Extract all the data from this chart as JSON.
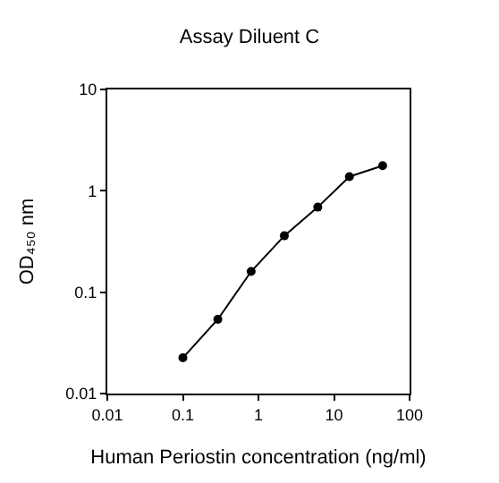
{
  "chart_data": {
    "type": "line",
    "title": "Assay Diluent C",
    "xlabel": "Human Periostin concentration (ng/ml)",
    "ylabel": "OD₄₅₀ nm",
    "x": [
      0.1,
      0.29,
      0.8,
      2.2,
      6.1,
      16,
      44
    ],
    "series": [
      {
        "color": "#000000",
        "values": [
          0.0225,
          0.054,
          0.16,
          0.36,
          0.69,
          1.38,
          1.77
        ]
      }
    ],
    "log": "xy",
    "xlim": [
      0.01,
      100
    ],
    "ylim": [
      0.01,
      10
    ],
    "xticks": [
      0.01,
      0.1,
      1,
      10,
      100
    ],
    "yticks": [
      0.01,
      0.1,
      1,
      10
    ],
    "marker": "circle",
    "line_style": "solid"
  }
}
